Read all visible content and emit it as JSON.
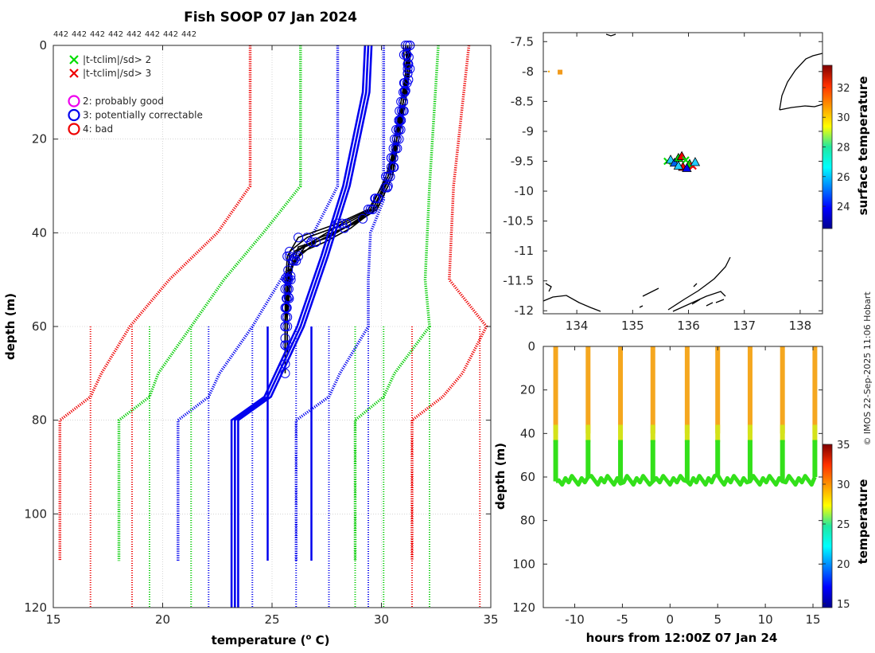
{
  "title": "Fish SOOP 07 Jan 2024",
  "platform_ids": [
    "442",
    "442",
    "442",
    "442",
    "442",
    "442",
    "442",
    "442"
  ],
  "copyright": "© IMOS 22-Sep-2025 11:06 Hobart",
  "legend": {
    "flags": [
      {
        "marker": "x",
        "color": "#00dd00",
        "label": "|t-tclim|/sd> 2"
      },
      {
        "marker": "x",
        "color": "#ee0000",
        "label": "|t-tclim|/sd> 3"
      }
    ],
    "qc": [
      {
        "marker": "o",
        "color": "#ee00ee",
        "label": "2: probably good"
      },
      {
        "marker": "o",
        "color": "#0000ee",
        "label": "3: potentially correctable"
      },
      {
        "marker": "o",
        "color": "#ee0000",
        "label": "4: bad"
      }
    ]
  },
  "chart_data": [
    {
      "id": "profile",
      "type": "line",
      "xlabel": "temperature (o C)",
      "ylabel": "depth (m)",
      "xlim": [
        15,
        35
      ],
      "ylim": [
        0,
        120
      ],
      "y_reversed": true,
      "grid": true,
      "xticks": [
        "15",
        "20",
        "25",
        "30",
        "35"
      ],
      "yticks": [
        "0",
        "20",
        "40",
        "60",
        "80",
        "100",
        "120"
      ],
      "climatology_bounds": [
        {
          "name": "clim -3sd",
          "color": "#ee0000",
          "style": "dotted",
          "points": [
            [
              24,
              0
            ],
            [
              24,
              30
            ],
            [
              22.5,
              40
            ],
            [
              20.3,
              50
            ],
            [
              18.5,
              60
            ],
            [
              17.2,
              70
            ],
            [
              16.7,
              75
            ],
            [
              15.3,
              80
            ],
            [
              15.3,
              110
            ]
          ]
        },
        {
          "name": "clim -2sd",
          "color": "#00cc00",
          "style": "dotted",
          "points": [
            [
              26.3,
              0
            ],
            [
              26.3,
              30
            ],
            [
              24.6,
              40
            ],
            [
              22.8,
              50
            ],
            [
              21.3,
              60
            ],
            [
              19.8,
              70
            ],
            [
              19.4,
              75
            ],
            [
              18,
              80
            ],
            [
              18,
              110
            ]
          ]
        },
        {
          "name": "clim -1sd",
          "color": "#0000ee",
          "style": "dotted",
          "points": [
            [
              28,
              0
            ],
            [
              28,
              30
            ],
            [
              26.9,
              40
            ],
            [
              25.4,
              50
            ],
            [
              24.1,
              60
            ],
            [
              22.6,
              70
            ],
            [
              22.1,
              75
            ],
            [
              20.7,
              80
            ],
            [
              20.7,
              110
            ]
          ]
        },
        {
          "name": "clim +1sd",
          "color": "#0000ee",
          "style": "dotted",
          "points": [
            [
              30.1,
              0
            ],
            [
              30.1,
              33
            ],
            [
              29.5,
              40
            ],
            [
              29.4,
              50
            ],
            [
              29.4,
              60
            ],
            [
              28.1,
              70
            ],
            [
              27.6,
              75
            ],
            [
              26.1,
              80
            ],
            [
              26.1,
              110
            ]
          ]
        },
        {
          "name": "clim +2sd",
          "color": "#00cc00",
          "style": "dotted",
          "points": [
            [
              32.6,
              0
            ],
            [
              32.2,
              30
            ],
            [
              32,
              50
            ],
            [
              32.2,
              60
            ],
            [
              30.6,
              70
            ],
            [
              30.1,
              75
            ],
            [
              28.8,
              80
            ],
            [
              28.8,
              110
            ]
          ]
        },
        {
          "name": "clim +3sd",
          "color": "#ee0000",
          "style": "dotted",
          "points": [
            [
              34,
              0
            ],
            [
              33.3,
              30
            ],
            [
              33.1,
              50
            ],
            [
              34.8,
              60
            ],
            [
              33.7,
              70
            ],
            [
              32.8,
              75
            ],
            [
              31.4,
              80
            ],
            [
              31.4,
              110
            ]
          ]
        }
      ],
      "climatology_ticks": [
        {
          "color": "#ee0000",
          "x": [
            16.7,
            18.6,
            31.4,
            34.5
          ]
        },
        {
          "color": "#00cc00",
          "x": [
            19.4,
            21.3,
            28.8,
            30.1,
            32.2
          ]
        },
        {
          "color": "#0000ee",
          "x": [
            22.1,
            24.1,
            26.1,
            27.6,
            29.4
          ]
        }
      ],
      "mean_profile": {
        "name": "climatology mean",
        "color": "#0000ee",
        "points": [
          [
            29.4,
            0
          ],
          [
            29.3,
            10
          ],
          [
            28.4,
            30
          ],
          [
            27.4,
            45
          ],
          [
            26.3,
            60
          ],
          [
            24.8,
            75
          ],
          [
            23.3,
            80
          ],
          [
            23.3,
            120
          ]
        ]
      },
      "mean_ticks_x": [
        24.8,
        26.8
      ],
      "observed_profiles": {
        "color": "#000000",
        "qc_marker_color": "#0000ee",
        "profiles": [
          [
            [
              31.1,
              0
            ],
            [
              31.2,
              5
            ],
            [
              31.0,
              12
            ],
            [
              30.7,
              20
            ],
            [
              30.4,
              28
            ],
            [
              29.6,
              35
            ],
            [
              28.4,
              38
            ],
            [
              26.6,
              41
            ],
            [
              25.8,
              44
            ],
            [
              25.7,
              50
            ],
            [
              25.6,
              60
            ],
            [
              25.6,
              66
            ]
          ],
          [
            [
              31.2,
              0
            ],
            [
              31.3,
              5
            ],
            [
              31.1,
              12
            ],
            [
              30.8,
              20
            ],
            [
              30.5,
              28
            ],
            [
              29.8,
              35
            ],
            [
              28.8,
              38
            ],
            [
              27.2,
              41
            ],
            [
              26.0,
              44
            ],
            [
              25.8,
              50
            ],
            [
              25.6,
              60
            ],
            [
              25.6,
              65
            ]
          ],
          [
            [
              31.3,
              0
            ],
            [
              31.3,
              5
            ],
            [
              31.0,
              12
            ],
            [
              30.6,
              20
            ],
            [
              30.3,
              28
            ],
            [
              29.4,
              35
            ],
            [
              28.0,
              38
            ],
            [
              26.2,
              41
            ],
            [
              25.7,
              45
            ],
            [
              25.6,
              52
            ],
            [
              25.6,
              60
            ],
            [
              25.6,
              70
            ]
          ],
          [
            [
              31.1,
              0
            ],
            [
              31.2,
              6
            ],
            [
              31.1,
              12
            ],
            [
              30.7,
              20
            ],
            [
              30.5,
              28
            ],
            [
              29.9,
              34
            ],
            [
              29.0,
              37
            ],
            [
              27.6,
              41
            ],
            [
              26.2,
              43
            ],
            [
              25.9,
              48
            ],
            [
              25.7,
              58
            ],
            [
              25.7,
              66
            ]
          ],
          [
            [
              31.2,
              0
            ],
            [
              31.2,
              6
            ],
            [
              30.9,
              12
            ],
            [
              30.7,
              20
            ],
            [
              30.2,
              28
            ],
            [
              29.5,
              35
            ],
            [
              28.2,
              38
            ],
            [
              26.8,
              42
            ],
            [
              25.8,
              45
            ],
            [
              25.7,
              52
            ],
            [
              25.6,
              60
            ],
            [
              25.6,
              64
            ]
          ],
          [
            [
              31.0,
              0
            ],
            [
              31.1,
              6
            ],
            [
              30.9,
              12
            ],
            [
              30.6,
              20
            ],
            [
              30.4,
              28
            ],
            [
              29.7,
              35
            ],
            [
              28.6,
              39
            ],
            [
              27.4,
              42
            ],
            [
              26.4,
              44
            ],
            [
              25.8,
              48
            ],
            [
              25.6,
              58
            ],
            [
              25.6,
              66
            ]
          ],
          [
            [
              31.3,
              0
            ],
            [
              31.2,
              6
            ],
            [
              31.0,
              12
            ],
            [
              30.8,
              20
            ],
            [
              30.3,
              28
            ],
            [
              29.6,
              35
            ],
            [
              28.3,
              39
            ],
            [
              27.0,
              42
            ],
            [
              26.0,
              46
            ],
            [
              25.7,
              50
            ],
            [
              25.6,
              60
            ],
            [
              25.6,
              64
            ]
          ],
          [
            [
              31.2,
              0
            ],
            [
              31.1,
              6
            ],
            [
              31.0,
              12
            ],
            [
              30.7,
              20
            ],
            [
              30.5,
              28
            ],
            [
              29.8,
              35
            ],
            [
              28.7,
              38
            ],
            [
              27.5,
              41
            ],
            [
              26.5,
              43
            ],
            [
              25.9,
              47
            ],
            [
              25.7,
              56
            ],
            [
              25.7,
              62
            ]
          ]
        ]
      }
    },
    {
      "id": "map",
      "type": "scatter",
      "xlim": [
        133.4,
        138.4
      ],
      "ylim": [
        -12.05,
        -7.35
      ],
      "xticks": [
        "134",
        "135",
        "136",
        "137",
        "138"
      ],
      "yticks": [
        "-7.5",
        "-8",
        "-8.5",
        "-9",
        "-9.5",
        "-10",
        "-10.5",
        "-11",
        "-11.5",
        "-12"
      ],
      "colorbar": {
        "label": "surface temperature",
        "min": 22.5,
        "max": 33.5,
        "ticks": [
          "24",
          "26",
          "28",
          "30",
          "32"
        ]
      },
      "points": [
        {
          "lon": 135.62,
          "lat": -9.5,
          "color": "#00dd00",
          "marker": "x"
        },
        {
          "lon": 135.68,
          "lat": -9.48,
          "color": "#20ccff",
          "marker": "tri"
        },
        {
          "lon": 135.75,
          "lat": -9.53,
          "color": "#0060ee",
          "marker": "tri"
        },
        {
          "lon": 135.82,
          "lat": -9.45,
          "color": "#00dd00",
          "marker": "tri"
        },
        {
          "lon": 135.88,
          "lat": -9.42,
          "color": "#ee0000",
          "marker": "tri"
        },
        {
          "lon": 135.95,
          "lat": -9.48,
          "color": "#00dd00",
          "marker": "x"
        },
        {
          "lon": 135.9,
          "lat": -9.6,
          "color": "#ee0000",
          "marker": "tri"
        },
        {
          "lon": 135.82,
          "lat": -9.58,
          "color": "#20ccff",
          "marker": "tri"
        },
        {
          "lon": 136.02,
          "lat": -9.55,
          "color": "#00dd00",
          "marker": "tri"
        },
        {
          "lon": 136.08,
          "lat": -9.58,
          "color": "#ee0000",
          "marker": "x"
        },
        {
          "lon": 136.12,
          "lat": -9.52,
          "color": "#20ccff",
          "marker": "tri"
        },
        {
          "lon": 135.97,
          "lat": -9.62,
          "color": "#0000ee",
          "marker": "tri"
        },
        {
          "lon": 133.7,
          "lat": -8.01,
          "color": "#f29a1a",
          "marker": "square"
        },
        {
          "lon": 133.5,
          "lat": -8.0,
          "color": "#ffaa00",
          "marker": "dot"
        }
      ]
    },
    {
      "id": "timeseries",
      "type": "scatter",
      "xlabel": "hours from 12:00Z 07 Jan 24",
      "ylabel": "depth (m)",
      "xlim": [
        -13.3,
        16
      ],
      "ylim": [
        0,
        120
      ],
      "y_reversed": true,
      "xticks": [
        "-10",
        "-5",
        "0",
        "5",
        "10",
        "15"
      ],
      "yticks": [
        "0",
        "20",
        "40",
        "60",
        "80",
        "100",
        "120"
      ],
      "colorbar": {
        "label": "temperature",
        "min": 14.5,
        "max": 35,
        "ticks": [
          "15",
          "20",
          "25",
          "30",
          "35"
        ]
      },
      "casts": [
        {
          "hours": -12.0,
          "bottom_depth": 62,
          "surface_temp": 30.5
        },
        {
          "hours": -8.6,
          "bottom_depth": 60,
          "surface_temp": 30.8
        },
        {
          "hours": -5.2,
          "bottom_depth": 63,
          "surface_temp": 30.7
        },
        {
          "hours": -1.8,
          "bottom_depth": 62,
          "surface_temp": 30.6
        },
        {
          "hours": 1.8,
          "bottom_depth": 62,
          "surface_temp": 30.9
        },
        {
          "hours": 5.0,
          "bottom_depth": 59,
          "surface_temp": 30.8
        },
        {
          "hours": 8.4,
          "bottom_depth": 62,
          "surface_temp": 30.7
        },
        {
          "hours": 11.8,
          "bottom_depth": 62,
          "surface_temp": 30.9
        },
        {
          "hours": 15.2,
          "bottom_depth": 60,
          "surface_temp": 30.8
        }
      ]
    }
  ]
}
